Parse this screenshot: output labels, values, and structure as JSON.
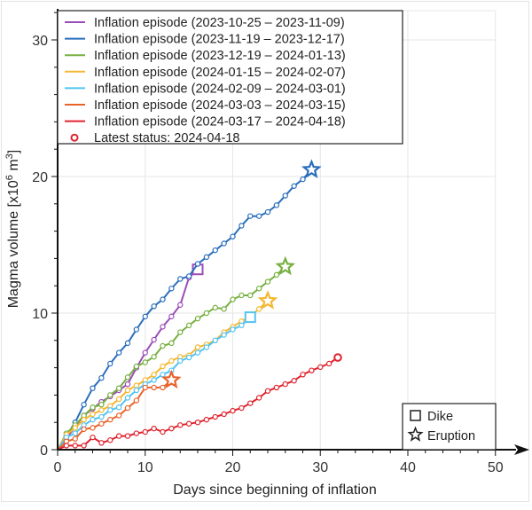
{
  "chart_data": {
    "type": "line",
    "title": "",
    "xlabel": "Days since beginning of inflation",
    "ylabel_parts": {
      "pre": "Magma volume [x10",
      "sup1": "6",
      "mid": " m",
      "sup2": "3",
      "post": "]"
    },
    "xlim": [
      0,
      52
    ],
    "ylim": [
      0,
      32.2
    ],
    "xticks": [
      0,
      10,
      20,
      30,
      40,
      50
    ],
    "xtick_labels": [
      "0",
      "10",
      "20",
      "30",
      "40",
      "50"
    ],
    "yticks": [
      0,
      10,
      20,
      30
    ],
    "ytick_labels": [
      "0",
      "10",
      "20",
      "30"
    ],
    "grid": true,
    "legend_position": "top-left",
    "series": [
      {
        "name": "Inflation episode (2023-10-25 – 2023-11-09)",
        "color": "#9B4DB8",
        "x": [
          0,
          1,
          2,
          3,
          4,
          5,
          6,
          7,
          8,
          9,
          10,
          11,
          12,
          13,
          14,
          15,
          16
        ],
        "y": [
          0,
          0.8,
          1.7,
          2.5,
          3.0,
          3.5,
          3.9,
          4.35,
          4.8,
          6.0,
          7.1,
          8.05,
          9.0,
          9.75,
          10.6,
          12.6,
          13.2
        ],
        "end_marker": "dike"
      },
      {
        "name": "Inflation episode (2023-11-19 – 2023-12-17)",
        "color": "#2A6EBB",
        "x": [
          0,
          1,
          2,
          3,
          4,
          5,
          6,
          7,
          8,
          9,
          10,
          11,
          12,
          13,
          14,
          15,
          16,
          17,
          18,
          19,
          20,
          21,
          22,
          23,
          24,
          25,
          26,
          27,
          28,
          29
        ],
        "y": [
          0,
          1.0,
          2.0,
          3.3,
          4.5,
          5.25,
          6.3,
          7.1,
          7.8,
          8.8,
          9.75,
          10.5,
          11.0,
          11.8,
          12.5,
          12.7,
          13.6,
          14.1,
          14.6,
          15.1,
          15.6,
          16.4,
          17.1,
          17.1,
          17.4,
          17.9,
          18.6,
          19.3,
          19.8,
          20.5
        ],
        "end_marker": "eruption"
      },
      {
        "name": "Inflation episode (2023-12-19 – 2024-01-13)",
        "color": "#77B041",
        "x": [
          0,
          1,
          2,
          3,
          4,
          5,
          6,
          7,
          8,
          9,
          10,
          11,
          12,
          13,
          14,
          15,
          16,
          17,
          18,
          19,
          20,
          21,
          22,
          23,
          24,
          25,
          26
        ],
        "y": [
          0,
          1.2,
          1.8,
          2.5,
          3.1,
          3.3,
          4.0,
          4.5,
          5.3,
          6.1,
          6.4,
          6.8,
          7.6,
          7.8,
          8.6,
          9.1,
          9.6,
          10.0,
          10.4,
          10.3,
          11.0,
          11.3,
          11.3,
          11.8,
          12.3,
          12.8,
          13.4
        ],
        "end_marker": "eruption"
      },
      {
        "name": "Inflation episode (2024-01-15 – 2024-02-07)",
        "color": "#F5B731",
        "x": [
          0,
          1,
          2,
          3,
          4,
          5,
          6,
          7,
          8,
          9,
          10,
          11,
          12,
          13,
          14,
          15,
          16,
          17,
          18,
          19,
          20,
          21,
          22,
          23,
          24
        ],
        "y": [
          0,
          1.1,
          1.6,
          2.2,
          2.6,
          2.9,
          3.2,
          3.7,
          4.35,
          4.7,
          5.1,
          5.5,
          6.1,
          6.5,
          6.8,
          6.9,
          7.5,
          7.7,
          8.0,
          8.6,
          9.0,
          9.4,
          9.8,
          10.3,
          10.9
        ],
        "end_marker": "eruption"
      },
      {
        "name": "Inflation episode (2024-02-09 – 2024-03-01)",
        "color": "#52C3F1",
        "x": [
          0,
          1,
          2,
          3,
          4,
          5,
          6,
          7,
          8,
          9,
          10,
          11,
          12,
          13,
          14,
          15,
          16,
          17,
          18,
          19,
          20,
          21,
          22
        ],
        "y": [
          0,
          0.9,
          1.2,
          1.8,
          2.2,
          2.4,
          2.9,
          3.1,
          3.8,
          4.35,
          4.8,
          5.1,
          5.5,
          5.8,
          6.5,
          6.75,
          7.1,
          7.5,
          8.0,
          8.4,
          8.8,
          9.1,
          9.7
        ],
        "end_marker": "dike"
      },
      {
        "name": "Inflation episode (2024-03-03 – 2024-03-15)",
        "color": "#E8632B",
        "x": [
          0,
          1,
          2,
          3,
          4,
          5,
          6,
          7,
          8,
          9,
          10,
          11,
          12,
          13
        ],
        "y": [
          0,
          0.6,
          0.8,
          1.5,
          1.6,
          1.9,
          2.2,
          2.5,
          3.05,
          3.6,
          4.55,
          4.55,
          4.55,
          5.1
        ],
        "end_marker": "eruption"
      },
      {
        "name": "Inflation episode (2024-03-17 – 2024-04-18)",
        "color": "#E0242F",
        "x": [
          0,
          1,
          2,
          3,
          4,
          5,
          6,
          7,
          8,
          9,
          10,
          11,
          12,
          13,
          14,
          15,
          16,
          17,
          18,
          19,
          20,
          21,
          22,
          23,
          24,
          25,
          26,
          27,
          28,
          29,
          30,
          31,
          32
        ],
        "y": [
          0,
          0.3,
          0.3,
          0.3,
          0.9,
          0.5,
          0.7,
          1.0,
          1.0,
          1.2,
          1.3,
          1.55,
          1.3,
          1.55,
          1.8,
          1.9,
          2.0,
          2.2,
          2.4,
          2.6,
          2.85,
          3.05,
          3.4,
          3.8,
          4.3,
          4.55,
          4.8,
          5.05,
          5.5,
          5.8,
          6.05,
          6.3,
          6.75
        ],
        "end_marker": "latest"
      }
    ],
    "latest_status_label": "Latest status: 2024-04-18",
    "marker_legend": [
      {
        "symbol": "square",
        "label": "Dike"
      },
      {
        "symbol": "star",
        "label": "Eruption"
      }
    ]
  }
}
